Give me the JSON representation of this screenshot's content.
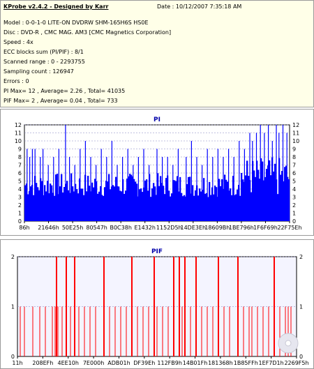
{
  "header": {
    "title": "KProbe v2.4.2 - Designed by Karr",
    "date": "Date : 10/12/2007 7:35:18 AM",
    "lines": [
      "Model : 0-0-1-0 LITE-ON DVDRW SHM-165H6S HS0E",
      "Disc : DVD-R , CMC MAG. AM3 [CMC Magnetics Corporation]",
      "Speed : 4x",
      "ECC blocks sum (PI/PIF) : 8/1",
      "Scanned range : 0 - 2293755",
      "Sampling count : 126947",
      "Errors : 0",
      "PI Max= 12 , Average= 2.26 , Total= 41035",
      "PIF Max= 2 , Average= 0.04 , Total= 733"
    ]
  },
  "colors": {
    "pi_bars": "#0000ff",
    "pif_bars": "#ff0000",
    "title_text": "#0000aa"
  },
  "chart_data": [
    {
      "type": "bar",
      "title": "PI",
      "ylim": [
        0,
        12
      ],
      "yticks": [
        0,
        1,
        2,
        3,
        4,
        5,
        6,
        7,
        8,
        9,
        10,
        11,
        12
      ],
      "xtick_labels": [
        "86h",
        "21646h",
        "50E25h",
        "80547h",
        "B0C38h",
        "E1432h",
        "1152D5h",
        "14DE3Eh",
        "18609Bh",
        "1BE796h",
        "1F6F69h",
        "22F75Eh"
      ],
      "baseline_range": [
        3,
        6
      ],
      "spikes": [
        {
          "x": 0.01,
          "y": 9
        },
        {
          "x": 0.02,
          "y": 8
        },
        {
          "x": 0.03,
          "y": 9
        },
        {
          "x": 0.04,
          "y": 9
        },
        {
          "x": 0.06,
          "y": 8
        },
        {
          "x": 0.07,
          "y": 9
        },
        {
          "x": 0.09,
          "y": 7
        },
        {
          "x": 0.11,
          "y": 8
        },
        {
          "x": 0.13,
          "y": 9
        },
        {
          "x": 0.155,
          "y": 12
        },
        {
          "x": 0.17,
          "y": 8
        },
        {
          "x": 0.19,
          "y": 7
        },
        {
          "x": 0.21,
          "y": 9
        },
        {
          "x": 0.23,
          "y": 10
        },
        {
          "x": 0.25,
          "y": 8
        },
        {
          "x": 0.27,
          "y": 7
        },
        {
          "x": 0.29,
          "y": 9
        },
        {
          "x": 0.31,
          "y": 8
        },
        {
          "x": 0.33,
          "y": 10
        },
        {
          "x": 0.35,
          "y": 7
        },
        {
          "x": 0.37,
          "y": 8
        },
        {
          "x": 0.39,
          "y": 9
        },
        {
          "x": 0.41,
          "y": 7
        },
        {
          "x": 0.43,
          "y": 8
        },
        {
          "x": 0.45,
          "y": 9
        },
        {
          "x": 0.47,
          "y": 7
        },
        {
          "x": 0.5,
          "y": 9
        },
        {
          "x": 0.52,
          "y": 8
        },
        {
          "x": 0.54,
          "y": 8
        },
        {
          "x": 0.56,
          "y": 7
        },
        {
          "x": 0.58,
          "y": 9
        },
        {
          "x": 0.61,
          "y": 8
        },
        {
          "x": 0.63,
          "y": 10
        },
        {
          "x": 0.65,
          "y": 8
        },
        {
          "x": 0.67,
          "y": 7
        },
        {
          "x": 0.69,
          "y": 9
        },
        {
          "x": 0.71,
          "y": 8
        },
        {
          "x": 0.73,
          "y": 9
        },
        {
          "x": 0.75,
          "y": 8
        },
        {
          "x": 0.77,
          "y": 9
        },
        {
          "x": 0.79,
          "y": 8
        },
        {
          "x": 0.81,
          "y": 10
        },
        {
          "x": 0.83,
          "y": 9
        },
        {
          "x": 0.85,
          "y": 11
        },
        {
          "x": 0.86,
          "y": 10
        },
        {
          "x": 0.875,
          "y": 11
        },
        {
          "x": 0.89,
          "y": 12
        },
        {
          "x": 0.905,
          "y": 11
        },
        {
          "x": 0.92,
          "y": 12
        },
        {
          "x": 0.935,
          "y": 10
        },
        {
          "x": 0.95,
          "y": 12
        },
        {
          "x": 0.96,
          "y": 11
        },
        {
          "x": 0.975,
          "y": 12
        },
        {
          "x": 0.99,
          "y": 11
        }
      ]
    },
    {
      "type": "bar",
      "title": "PIF",
      "ylim": [
        0,
        2
      ],
      "yticks": [
        0,
        1,
        2
      ],
      "xtick_labels": [
        "11h",
        "208EFh",
        "4EE10h",
        "7E000h",
        "ADB01h",
        "DF39Eh",
        "112FB9h",
        "14B01Fh",
        "181368h",
        "1B85FFh",
        "1EF7D1h",
        "2269F5h"
      ],
      "points": [
        {
          "x": 0.01,
          "y": 1
        },
        {
          "x": 0.025,
          "y": 1
        },
        {
          "x": 0.055,
          "y": 1
        },
        {
          "x": 0.08,
          "y": 1
        },
        {
          "x": 0.1,
          "y": 1
        },
        {
          "x": 0.125,
          "y": 1
        },
        {
          "x": 0.135,
          "y": 1
        },
        {
          "x": 0.14,
          "y": 2
        },
        {
          "x": 0.145,
          "y": 1
        },
        {
          "x": 0.16,
          "y": 1
        },
        {
          "x": 0.175,
          "y": 2
        },
        {
          "x": 0.19,
          "y": 1
        },
        {
          "x": 0.205,
          "y": 2
        },
        {
          "x": 0.22,
          "y": 1
        },
        {
          "x": 0.24,
          "y": 1
        },
        {
          "x": 0.26,
          "y": 1
        },
        {
          "x": 0.28,
          "y": 1
        },
        {
          "x": 0.31,
          "y": 2
        },
        {
          "x": 0.33,
          "y": 1
        },
        {
          "x": 0.35,
          "y": 1
        },
        {
          "x": 0.37,
          "y": 1
        },
        {
          "x": 0.39,
          "y": 1
        },
        {
          "x": 0.41,
          "y": 2
        },
        {
          "x": 0.43,
          "y": 1
        },
        {
          "x": 0.45,
          "y": 1
        },
        {
          "x": 0.47,
          "y": 1
        },
        {
          "x": 0.49,
          "y": 2
        },
        {
          "x": 0.5,
          "y": 1
        },
        {
          "x": 0.52,
          "y": 1
        },
        {
          "x": 0.54,
          "y": 1
        },
        {
          "x": 0.56,
          "y": 2
        },
        {
          "x": 0.58,
          "y": 2
        },
        {
          "x": 0.59,
          "y": 1
        },
        {
          "x": 0.6,
          "y": 2
        },
        {
          "x": 0.62,
          "y": 1
        },
        {
          "x": 0.64,
          "y": 2
        },
        {
          "x": 0.66,
          "y": 1
        },
        {
          "x": 0.68,
          "y": 1
        },
        {
          "x": 0.7,
          "y": 1
        },
        {
          "x": 0.72,
          "y": 2
        },
        {
          "x": 0.74,
          "y": 1
        },
        {
          "x": 0.76,
          "y": 1
        },
        {
          "x": 0.79,
          "y": 2
        },
        {
          "x": 0.81,
          "y": 1
        },
        {
          "x": 0.83,
          "y": 1
        },
        {
          "x": 0.84,
          "y": 1
        },
        {
          "x": 0.86,
          "y": 1
        },
        {
          "x": 0.88,
          "y": 1
        },
        {
          "x": 0.9,
          "y": 1
        },
        {
          "x": 0.92,
          "y": 2
        },
        {
          "x": 0.94,
          "y": 1
        },
        {
          "x": 0.96,
          "y": 1
        },
        {
          "x": 0.97,
          "y": 1
        },
        {
          "x": 0.98,
          "y": 1
        }
      ]
    }
  ]
}
